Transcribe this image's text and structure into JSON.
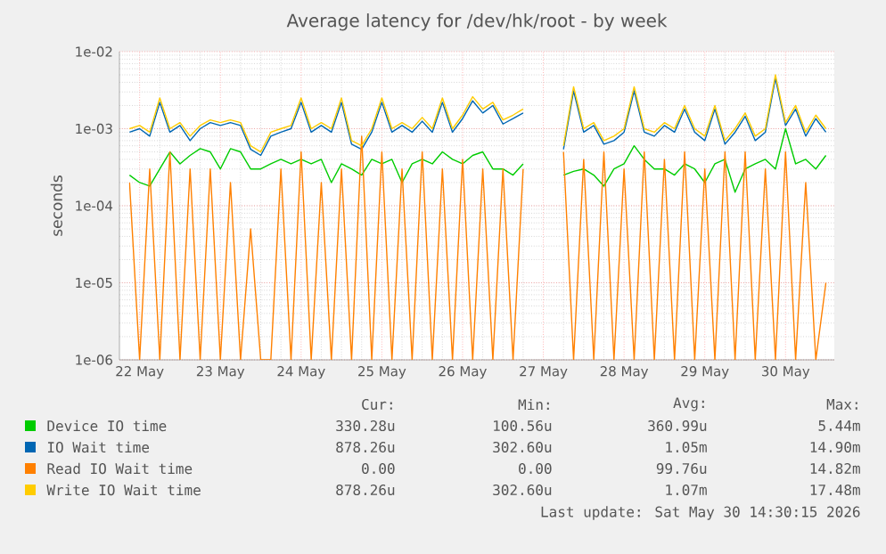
{
  "chart_data": {
    "type": "line",
    "title": "Average latency for /dev/hk/root - by week",
    "ylabel": "seconds",
    "x": [
      "2026-05-21T21:00",
      "2026-05-22T00:00",
      "2026-05-22T03:00",
      "2026-05-22T06:00",
      "2026-05-22T09:00",
      "2026-05-22T12:00",
      "2026-05-22T15:00",
      "2026-05-22T18:00",
      "2026-05-22T21:00",
      "2026-05-23T00:00",
      "2026-05-23T03:00",
      "2026-05-23T06:00",
      "2026-05-23T09:00",
      "2026-05-23T12:00",
      "2026-05-23T15:00",
      "2026-05-23T18:00",
      "2026-05-23T21:00",
      "2026-05-24T00:00",
      "2026-05-24T03:00",
      "2026-05-24T06:00",
      "2026-05-24T09:00",
      "2026-05-24T12:00",
      "2026-05-24T15:00",
      "2026-05-24T18:00",
      "2026-05-24T21:00",
      "2026-05-25T00:00",
      "2026-05-25T03:00",
      "2026-05-25T06:00",
      "2026-05-25T09:00",
      "2026-05-25T12:00",
      "2026-05-25T15:00",
      "2026-05-25T18:00",
      "2026-05-25T21:00",
      "2026-05-26T00:00",
      "2026-05-26T03:00",
      "2026-05-26T06:00",
      "2026-05-26T09:00",
      "2026-05-26T12:00",
      "2026-05-26T15:00",
      "2026-05-26T18:00",
      "2026-05-26T21:00",
      "2026-05-27T00:00",
      "2026-05-27T03:00",
      "2026-05-27T06:00",
      "2026-05-27T09:00",
      "2026-05-27T12:00",
      "2026-05-27T15:00",
      "2026-05-27T18:00",
      "2026-05-27T21:00",
      "2026-05-28T00:00",
      "2026-05-28T03:00",
      "2026-05-28T06:00",
      "2026-05-28T09:00",
      "2026-05-28T12:00",
      "2026-05-28T15:00",
      "2026-05-28T18:00",
      "2026-05-28T21:00",
      "2026-05-29T00:00",
      "2026-05-29T03:00",
      "2026-05-29T06:00",
      "2026-05-29T09:00",
      "2026-05-29T12:00",
      "2026-05-29T15:00",
      "2026-05-29T18:00",
      "2026-05-29T21:00",
      "2026-05-30T00:00",
      "2026-05-30T03:00",
      "2026-05-30T06:00",
      "2026-05-30T09:00",
      "2026-05-30T12:00"
    ],
    "series": [
      {
        "name": "Device IO time",
        "color": "#00cc00",
        "values": [
          0.00025,
          0.0002,
          0.00018,
          0.0003,
          0.0005,
          0.00035,
          0.00045,
          0.00055,
          0.0005,
          0.0003,
          0.00055,
          0.0005,
          0.0003,
          0.0003,
          0.00035,
          0.0004,
          0.00035,
          0.0004,
          0.00035,
          0.0004,
          0.0002,
          0.00035,
          0.0003,
          0.00025,
          0.0004,
          0.00035,
          0.0004,
          0.0002,
          0.00035,
          0.0004,
          0.00035,
          0.0005,
          0.0004,
          0.00035,
          0.00045,
          0.0005,
          0.0003,
          0.0003,
          0.00025,
          0.00035,
          null,
          null,
          null,
          0.00025,
          0.00028,
          0.0003,
          0.00025,
          0.00018,
          0.0003,
          0.00035,
          0.0006,
          0.0004,
          0.0003,
          0.0003,
          0.00025,
          0.00035,
          0.0003,
          0.0002,
          0.00035,
          0.0004,
          0.00015,
          0.0003,
          0.00035,
          0.0004,
          0.0003,
          0.001,
          0.00035,
          0.0004,
          0.0003,
          0.00045
        ]
      },
      {
        "name": "IO Wait time",
        "color": "#0066b3",
        "values": [
          0.0009,
          0.001,
          0.0008,
          0.0022,
          0.0009,
          0.0011,
          0.0007,
          0.001,
          0.0012,
          0.0011,
          0.0012,
          0.0011,
          0.00054,
          0.00045,
          0.0008,
          0.0009,
          0.001,
          0.0022,
          0.0009,
          0.0011,
          0.0009,
          0.0022,
          0.00063,
          0.00054,
          0.0009,
          0.0022,
          0.0009,
          0.0011,
          0.0009,
          0.00125,
          0.0009,
          0.0022,
          0.0009,
          0.00135,
          0.0023,
          0.0016,
          0.002,
          0.00115,
          0.00135,
          0.0016,
          null,
          null,
          null,
          0.00054,
          0.0031,
          0.0009,
          0.0011,
          0.00063,
          0.0007,
          0.0009,
          0.0031,
          0.0009,
          0.0008,
          0.0011,
          0.0009,
          0.0018,
          0.0009,
          0.0007,
          0.0018,
          0.00063,
          0.0009,
          0.00145,
          0.0007,
          0.0009,
          0.0045,
          0.0011,
          0.0018,
          0.0008,
          0.00135,
          0.0009
        ]
      },
      {
        "name": "Read IO Wait time",
        "color": "#ff8000",
        "values": [
          0.0002,
          1e-06,
          0.0003,
          1e-06,
          0.0005,
          1e-06,
          0.0003,
          1e-06,
          0.0003,
          1e-06,
          0.0002,
          1e-06,
          5e-05,
          1e-06,
          1e-06,
          0.0003,
          1e-06,
          0.0005,
          1e-06,
          0.0002,
          1e-06,
          0.0003,
          1e-06,
          0.0008,
          1e-06,
          0.0005,
          1e-06,
          0.0003,
          1e-06,
          0.0005,
          1e-06,
          0.0003,
          1e-06,
          0.0004,
          1e-06,
          0.0003,
          1e-06,
          0.0003,
          1e-06,
          0.0003,
          null,
          null,
          null,
          0.0005,
          1e-06,
          0.0004,
          1e-06,
          0.0005,
          1e-06,
          0.0003,
          1e-06,
          0.0005,
          1e-06,
          0.0004,
          1e-06,
          0.0005,
          1e-06,
          0.0003,
          1e-06,
          0.0005,
          1e-06,
          0.0005,
          1e-06,
          0.0003,
          1e-06,
          0.0005,
          1e-06,
          0.0002,
          1e-06,
          1e-05
        ]
      },
      {
        "name": "Write IO Wait time",
        "color": "#ffcc00",
        "values": [
          0.001,
          0.0011,
          0.0009,
          0.0025,
          0.001,
          0.0012,
          0.0008,
          0.0011,
          0.0013,
          0.0012,
          0.0013,
          0.0012,
          0.0006,
          0.0005,
          0.0009,
          0.001,
          0.0011,
          0.0025,
          0.001,
          0.0012,
          0.001,
          0.0025,
          0.0007,
          0.0006,
          0.001,
          0.0025,
          0.001,
          0.0012,
          0.001,
          0.0014,
          0.001,
          0.0025,
          0.001,
          0.0015,
          0.0026,
          0.0018,
          0.0022,
          0.0013,
          0.0015,
          0.0018,
          null,
          null,
          null,
          0.0006,
          0.0035,
          0.001,
          0.0012,
          0.0007,
          0.0008,
          0.001,
          0.0035,
          0.001,
          0.0009,
          0.0012,
          0.001,
          0.002,
          0.001,
          0.0008,
          0.002,
          0.0007,
          0.001,
          0.0016,
          0.0008,
          0.001,
          0.005,
          0.0012,
          0.002,
          0.0009,
          0.0015,
          0.001
        ]
      }
    ],
    "xlim": [
      "2026-05-21T18:00",
      "2026-05-30T14:30"
    ],
    "xticks": [
      {
        "value": "2026-05-22",
        "label": "22 May"
      },
      {
        "value": "2026-05-23",
        "label": "23 May"
      },
      {
        "value": "2026-05-24",
        "label": "24 May"
      },
      {
        "value": "2026-05-25",
        "label": "25 May"
      },
      {
        "value": "2026-05-26",
        "label": "26 May"
      },
      {
        "value": "2026-05-27",
        "label": "27 May"
      },
      {
        "value": "2026-05-28",
        "label": "28 May"
      },
      {
        "value": "2026-05-29",
        "label": "29 May"
      },
      {
        "value": "2026-05-30",
        "label": "30 May"
      }
    ],
    "ylim": [
      1e-06,
      0.01
    ],
    "log": "y",
    "yticks": [
      {
        "value": 1e-06,
        "label": "1e-06"
      },
      {
        "value": 1e-05,
        "label": "1e-05"
      },
      {
        "value": 0.0001,
        "label": "1e-04"
      },
      {
        "value": 0.001,
        "label": "1e-03"
      },
      {
        "value": 0.01,
        "label": "1e-02"
      }
    ],
    "grid": true,
    "legend": "bottom",
    "line_style": "solid",
    "marker": "none",
    "annotations": [
      "Cur:",
      "Min:",
      "Avg:",
      "Max:",
      "330.28u",
      "100.56u",
      "360.99u",
      "5.44m",
      "878.26u",
      "302.60u",
      "1.05m",
      "14.90m",
      "0.00",
      "0.00",
      "99.76u",
      "14.82m",
      "878.26u",
      "302.60u",
      "1.07m",
      "17.48m",
      "Last update: Sat May 30 14:30:15 2026"
    ]
  }
}
